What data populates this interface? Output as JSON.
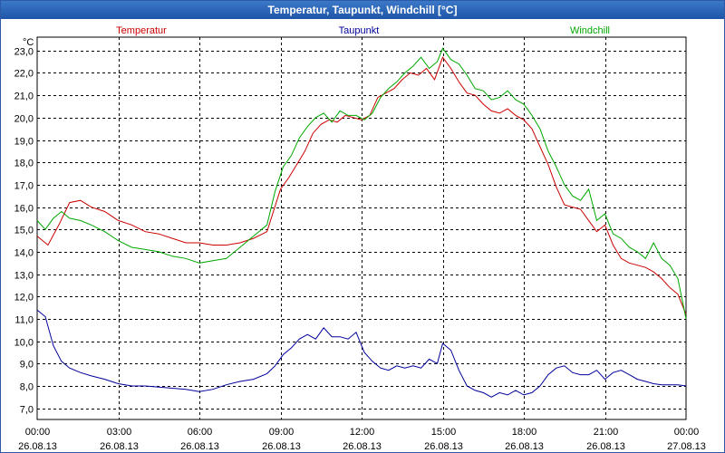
{
  "window": {
    "title": "Temperatur, Taupunkt, Windchill [°C]"
  },
  "chart_data": {
    "type": "line",
    "title": "Temperatur, Taupunkt, Windchill [°C]",
    "ylabel": "°C",
    "ylim": [
      6.5,
      23.6
    ],
    "xlim": [
      0,
      24
    ],
    "grid": true,
    "yticks": [
      "7,0",
      "8,0",
      "9,0",
      "10,0",
      "11,0",
      "12,0",
      "13,0",
      "14,0",
      "15,0",
      "16,0",
      "17,0",
      "18,0",
      "19,0",
      "20,0",
      "21,0",
      "22,0",
      "23,0"
    ],
    "xticks": [
      {
        "time": "00:00",
        "date": "26.08.13"
      },
      {
        "time": "03:00",
        "date": "26.08.13"
      },
      {
        "time": "06:00",
        "date": "26.08.13"
      },
      {
        "time": "09:00",
        "date": "26.08.13"
      },
      {
        "time": "12:00",
        "date": "26.08.13"
      },
      {
        "time": "15:00",
        "date": "26.08.13"
      },
      {
        "time": "18:00",
        "date": "26.08.13"
      },
      {
        "time": "21:00",
        "date": "26.08.13"
      },
      {
        "time": "00:00",
        "date": "27.08.13"
      }
    ],
    "series": [
      {
        "name": "Temperatur",
        "color": "#cc0000",
        "x": [
          0,
          0.4,
          0.8,
          1.2,
          1.6,
          2.0,
          2.5,
          3.0,
          3.5,
          4.0,
          4.5,
          5.0,
          5.5,
          6.0,
          6.5,
          7.0,
          7.5,
          8.0,
          8.5,
          9.0,
          9.3,
          9.6,
          9.9,
          10.2,
          10.5,
          10.8,
          11.1,
          11.4,
          11.7,
          12.0,
          12.3,
          12.6,
          12.9,
          13.2,
          13.5,
          13.8,
          14.1,
          14.4,
          14.7,
          15.0,
          15.3,
          15.6,
          15.9,
          16.2,
          16.5,
          16.8,
          17.1,
          17.4,
          17.7,
          18.0,
          18.3,
          18.6,
          18.9,
          19.2,
          19.5,
          19.8,
          20.1,
          20.4,
          20.7,
          21.0,
          21.3,
          21.6,
          21.9,
          22.2,
          22.5,
          22.8,
          23.1,
          23.4,
          23.7,
          24.0
        ],
        "y": [
          14.7,
          14.3,
          15.2,
          16.2,
          16.3,
          16.0,
          15.8,
          15.4,
          15.2,
          14.9,
          14.8,
          14.6,
          14.4,
          14.4,
          14.3,
          14.3,
          14.4,
          14.6,
          14.9,
          16.8,
          17.3,
          17.9,
          18.5,
          19.3,
          19.7,
          19.9,
          19.8,
          20.1,
          20.0,
          19.9,
          20.1,
          20.9,
          21.1,
          21.3,
          21.7,
          22.0,
          21.9,
          22.2,
          21.7,
          22.7,
          22.2,
          21.6,
          21.1,
          21.0,
          20.6,
          20.3,
          20.2,
          20.4,
          20.1,
          19.9,
          19.5,
          18.7,
          17.9,
          16.9,
          16.1,
          16.0,
          15.9,
          15.4,
          14.9,
          15.2,
          14.3,
          13.7,
          13.5,
          13.4,
          13.3,
          13.1,
          12.8,
          12.4,
          12.1,
          11.2
        ]
      },
      {
        "name": "Taupunkt",
        "color": "#00009a",
        "x": [
          0,
          0.3,
          0.6,
          0.9,
          1.2,
          1.6,
          2.0,
          2.5,
          3.0,
          3.5,
          4.0,
          4.5,
          5.0,
          5.5,
          6.0,
          6.5,
          7.0,
          7.5,
          8.0,
          8.5,
          8.8,
          9.1,
          9.4,
          9.7,
          10.0,
          10.3,
          10.6,
          10.9,
          11.2,
          11.5,
          11.8,
          12.1,
          12.4,
          12.7,
          13.0,
          13.3,
          13.6,
          13.9,
          14.2,
          14.5,
          14.8,
          15.0,
          15.3,
          15.6,
          15.9,
          16.2,
          16.5,
          16.8,
          17.1,
          17.4,
          17.7,
          18.0,
          18.3,
          18.6,
          18.9,
          19.2,
          19.5,
          19.8,
          20.1,
          20.4,
          20.7,
          21.0,
          21.3,
          21.6,
          21.9,
          22.2,
          22.5,
          22.8,
          23.1,
          23.4,
          23.7,
          24.0
        ],
        "y": [
          11.4,
          11.1,
          9.8,
          9.1,
          8.8,
          8.6,
          8.45,
          8.3,
          8.1,
          8.0,
          8.0,
          7.95,
          7.9,
          7.85,
          7.75,
          7.85,
          8.05,
          8.2,
          8.3,
          8.55,
          8.9,
          9.4,
          9.7,
          10.1,
          10.3,
          10.1,
          10.6,
          10.2,
          10.2,
          10.1,
          10.4,
          9.5,
          9.1,
          8.8,
          8.7,
          8.9,
          8.8,
          8.9,
          8.8,
          9.2,
          9.0,
          9.9,
          9.6,
          8.7,
          8.0,
          7.8,
          7.7,
          7.5,
          7.7,
          7.6,
          7.8,
          7.6,
          7.7,
          8.0,
          8.5,
          8.8,
          8.9,
          8.6,
          8.5,
          8.5,
          8.7,
          8.3,
          8.6,
          8.7,
          8.5,
          8.3,
          8.2,
          8.1,
          8.05,
          8.05,
          8.05,
          8.0
        ]
      },
      {
        "name": "Windchill",
        "color": "#00a800",
        "x": [
          0,
          0.3,
          0.6,
          0.9,
          1.2,
          1.6,
          2.0,
          2.5,
          3.0,
          3.5,
          4.0,
          4.5,
          5.0,
          5.5,
          6.0,
          6.5,
          7.0,
          7.5,
          8.0,
          8.5,
          8.8,
          9.1,
          9.4,
          9.7,
          10.0,
          10.3,
          10.6,
          10.9,
          11.2,
          11.5,
          11.8,
          12.1,
          12.4,
          12.7,
          13.0,
          13.3,
          13.6,
          13.9,
          14.2,
          14.5,
          14.8,
          15.0,
          15.3,
          15.6,
          15.9,
          16.2,
          16.5,
          16.8,
          17.1,
          17.4,
          17.7,
          18.0,
          18.3,
          18.6,
          18.9,
          19.2,
          19.5,
          19.8,
          20.1,
          20.4,
          20.7,
          21.0,
          21.3,
          21.6,
          21.9,
          22.2,
          22.5,
          22.8,
          23.1,
          23.4,
          23.7,
          24.0
        ],
        "y": [
          15.4,
          15.0,
          15.5,
          15.8,
          15.5,
          15.4,
          15.2,
          14.9,
          14.5,
          14.2,
          14.1,
          14.0,
          13.8,
          13.7,
          13.5,
          13.6,
          13.7,
          14.2,
          14.7,
          15.2,
          16.7,
          17.8,
          18.3,
          19.1,
          19.6,
          20.0,
          20.2,
          19.8,
          20.3,
          20.1,
          20.1,
          19.9,
          20.2,
          20.9,
          21.3,
          21.6,
          22.0,
          22.3,
          22.7,
          22.2,
          22.5,
          23.1,
          22.6,
          22.4,
          21.9,
          21.3,
          21.2,
          20.8,
          20.9,
          21.2,
          20.8,
          20.6,
          20.1,
          19.5,
          18.5,
          17.8,
          17.0,
          16.5,
          16.3,
          16.8,
          15.4,
          15.7,
          14.8,
          14.6,
          14.2,
          14.0,
          13.7,
          14.4,
          13.7,
          13.4,
          12.8,
          11.0
        ]
      }
    ]
  }
}
